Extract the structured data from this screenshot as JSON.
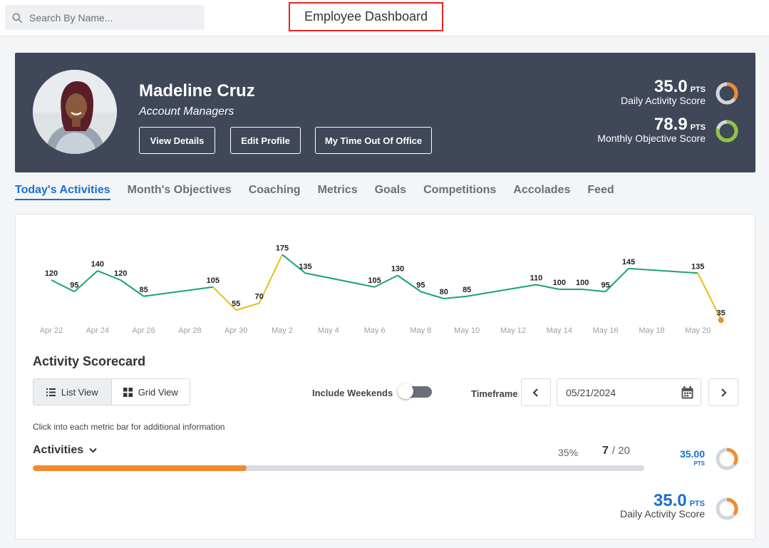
{
  "search": {
    "placeholder": "Search By Name..."
  },
  "page_title": "Employee Dashboard",
  "employee": {
    "name": "Madeline Cruz",
    "role": "Account Managers",
    "buttons": {
      "view_details": "View Details",
      "edit_profile": "Edit Profile",
      "time_out": "My Time Out Of Office"
    }
  },
  "scores": {
    "daily": {
      "value": "35.0",
      "unit": "PTS",
      "label": "Daily Activity Score",
      "fraction": 0.35,
      "color": "#f28a30"
    },
    "monthly": {
      "value": "78.9",
      "unit": "PTS",
      "label": "Monthly Objective Score",
      "fraction": 0.789,
      "color": "#8cc63f"
    }
  },
  "tabs": [
    {
      "label": "Today's Activities",
      "active": true
    },
    {
      "label": "Month's Objectives"
    },
    {
      "label": "Coaching"
    },
    {
      "label": "Metrics"
    },
    {
      "label": "Goals"
    },
    {
      "label": "Competitions"
    },
    {
      "label": "Accolades"
    },
    {
      "label": "Feed"
    }
  ],
  "chart_data": {
    "type": "line",
    "x": [
      "Apr 22",
      "Apr 23",
      "Apr 24",
      "Apr 25",
      "Apr 26",
      "Apr 29",
      "Apr 30",
      "May 1",
      "May 2",
      "May 3",
      "May 6",
      "May 7",
      "May 8",
      "May 9",
      "May 10",
      "May 13",
      "May 14",
      "May 15",
      "May 16",
      "May 17",
      "May 20",
      "May 21"
    ],
    "values": [
      120,
      95,
      140,
      120,
      85,
      105,
      55,
      70,
      175,
      135,
      105,
      130,
      95,
      80,
      85,
      110,
      100,
      100,
      95,
      145,
      135,
      35
    ],
    "x_tick_labels": [
      "Apr 22",
      "Apr 24",
      "Apr 26",
      "Apr 28",
      "Apr 30",
      "May 2",
      "May 4",
      "May 6",
      "May 8",
      "May 10",
      "May 12",
      "May 14",
      "May 16",
      "May 18",
      "May 20"
    ],
    "line_color": "#1aa36e",
    "low_color": "#e2c21a",
    "last_point_color": "#f28a30",
    "grid": false
  },
  "scorecard": {
    "title": "Activity Scorecard",
    "list_view": "List View",
    "grid_view": "Grid View",
    "include_weekends": "Include Weekends",
    "weekends_on": false,
    "timeframe_label": "Timeframe",
    "date": "05/21/2024",
    "hint": "Click into each metric bar for additional information",
    "activities": {
      "label": "Activities",
      "percent_text": "35%",
      "done": "7",
      "total": "/ 20",
      "fraction": 0.35,
      "pts_value": "35.00",
      "pts_unit": "PTS"
    },
    "summary": {
      "value": "35.0",
      "unit": "PTS",
      "label": "Daily Activity Score",
      "fraction": 0.35
    }
  }
}
